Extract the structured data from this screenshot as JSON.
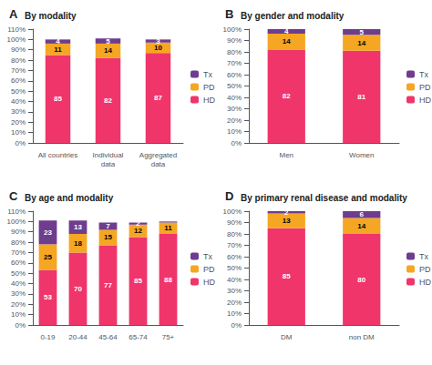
{
  "chart_data": [
    {
      "type": "bar",
      "title": "By modality",
      "annotations": [
        "A"
      ],
      "categories": [
        "All countries",
        "Individual\ndata",
        "Aggregated\ndata"
      ],
      "series": [
        {
          "name": "HD",
          "color": "#f0356b",
          "values": [
            85,
            82,
            87
          ]
        },
        {
          "name": "PD",
          "color": "#f5a623",
          "values": [
            11,
            14,
            10
          ]
        },
        {
          "name": "Tx",
          "color": "#6e3d8e",
          "values": [
            4,
            5,
            3
          ]
        }
      ],
      "stacked": true,
      "data_labels": true,
      "legend": "right",
      "grid": false,
      "ylim": [
        0,
        110
      ],
      "yticks": [
        {
          "value": 0,
          "label": "0%"
        },
        {
          "value": 10,
          "label": "10%"
        },
        {
          "value": 20,
          "label": "20%"
        },
        {
          "value": 30,
          "label": "30%"
        },
        {
          "value": 40,
          "label": "40%"
        },
        {
          "value": 50,
          "label": "50%"
        },
        {
          "value": 60,
          "label": "60%"
        },
        {
          "value": 70,
          "label": "70%"
        },
        {
          "value": 80,
          "label": "80%"
        },
        {
          "value": 90,
          "label": "90%"
        },
        {
          "value": 100,
          "label": "100%"
        },
        {
          "value": 110,
          "label": "110%"
        }
      ]
    },
    {
      "type": "bar",
      "title": "By gender and modality",
      "annotations": [
        "B"
      ],
      "categories": [
        "Men",
        "Women"
      ],
      "series": [
        {
          "name": "HD",
          "color": "#f0356b",
          "values": [
            82,
            81
          ]
        },
        {
          "name": "PD",
          "color": "#f5a623",
          "values": [
            14,
            14
          ]
        },
        {
          "name": "Tx",
          "color": "#6e3d8e",
          "values": [
            4,
            5
          ]
        }
      ],
      "stacked": true,
      "data_labels": true,
      "legend": "right",
      "grid": false,
      "ylim": [
        0,
        100
      ],
      "yticks": [
        {
          "value": 0,
          "label": "0%"
        },
        {
          "value": 10,
          "label": "10%"
        },
        {
          "value": 20,
          "label": "20%"
        },
        {
          "value": 30,
          "label": "30%"
        },
        {
          "value": 40,
          "label": "40%"
        },
        {
          "value": 50,
          "label": "50%"
        },
        {
          "value": 60,
          "label": "60%"
        },
        {
          "value": 70,
          "label": "70%"
        },
        {
          "value": 80,
          "label": "80%"
        },
        {
          "value": 90,
          "label": "90%"
        },
        {
          "value": 100,
          "label": "100%"
        }
      ]
    },
    {
      "type": "bar",
      "title": "By age and modality",
      "annotations": [
        "C"
      ],
      "categories": [
        "0-19",
        "20-44",
        "45-64",
        "65-74",
        "75+"
      ],
      "series": [
        {
          "name": "HD",
          "color": "#f0356b",
          "values": [
            53,
            70,
            77,
            85,
            88
          ]
        },
        {
          "name": "PD",
          "color": "#f5a623",
          "values": [
            25,
            18,
            15,
            12,
            11
          ]
        },
        {
          "name": "Tx",
          "color": "#6e3d8e",
          "values": [
            23,
            13,
            7,
            2,
            1
          ],
          "value_labels": [
            "23",
            "13",
            "7",
            "2",
            null
          ]
        }
      ],
      "stacked": true,
      "data_labels": true,
      "legend": "right",
      "grid": false,
      "ylim": [
        0,
        110
      ],
      "yticks": [
        {
          "value": 0,
          "label": "0%"
        },
        {
          "value": 10,
          "label": "10%"
        },
        {
          "value": 20,
          "label": "20%"
        },
        {
          "value": 30,
          "label": "30%"
        },
        {
          "value": 40,
          "label": "40%"
        },
        {
          "value": 50,
          "label": "50%"
        },
        {
          "value": 60,
          "label": "60%"
        },
        {
          "value": 70,
          "label": "70%"
        },
        {
          "value": 80,
          "label": "80%"
        },
        {
          "value": 90,
          "label": "90%"
        },
        {
          "value": 100,
          "label": "100%"
        },
        {
          "value": 110,
          "label": "110%"
        }
      ]
    },
    {
      "type": "bar",
      "title": "By primary renal disease and modality",
      "annotations": [
        "D"
      ],
      "categories": [
        "DM",
        "non DM"
      ],
      "series": [
        {
          "name": "HD",
          "color": "#f0356b",
          "values": [
            85,
            80
          ]
        },
        {
          "name": "PD",
          "color": "#f5a623",
          "values": [
            13,
            14
          ]
        },
        {
          "name": "Tx",
          "color": "#6e3d8e",
          "values": [
            2,
            6
          ]
        }
      ],
      "stacked": true,
      "data_labels": true,
      "legend": "right",
      "grid": false,
      "ylim": [
        0,
        100
      ],
      "yticks": [
        {
          "value": 0,
          "label": "0%"
        },
        {
          "value": 10,
          "label": "10%"
        },
        {
          "value": 20,
          "label": "20%"
        },
        {
          "value": 30,
          "label": "30%"
        },
        {
          "value": 40,
          "label": "40%"
        },
        {
          "value": 50,
          "label": "50%"
        },
        {
          "value": 60,
          "label": "60%"
        },
        {
          "value": 70,
          "label": "70%"
        },
        {
          "value": 80,
          "label": "80%"
        },
        {
          "value": 90,
          "label": "90%"
        },
        {
          "value": 100,
          "label": "100%"
        }
      ]
    }
  ]
}
